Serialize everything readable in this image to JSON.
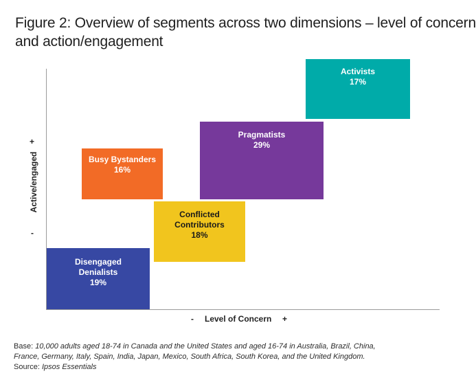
{
  "title": {
    "line1": "Figure 2: Overview of segments across two dimensions – level of concern",
    "line2": "and action/engagement"
  },
  "axes": {
    "y_label": "Active/engaged",
    "y_plus": "+",
    "y_minus": "-",
    "x_label": "Level of Concern",
    "x_minus": "-",
    "x_plus": "+"
  },
  "segments": [
    {
      "name_lines": [
        "Activists"
      ],
      "percent": "17%",
      "color": "#00aba9",
      "text_color": "#ffffff"
    },
    {
      "name_lines": [
        "Pragmatists"
      ],
      "percent": "29%",
      "color": "#76399b",
      "text_color": "#ffffff"
    },
    {
      "name_lines": [
        "Busy Bystanders"
      ],
      "percent": "16%",
      "color": "#f26b26",
      "text_color": "#ffffff"
    },
    {
      "name_lines": [
        "Conflicted",
        "Contributors"
      ],
      "percent": "18%",
      "color": "#f1c51e",
      "text_color": "#1a1a1a"
    },
    {
      "name_lines": [
        "Disengaged",
        "Denialists"
      ],
      "percent": "19%",
      "color": "#3748a3",
      "text_color": "#ffffff"
    }
  ],
  "footer": {
    "base_label": "Base:",
    "base_text_line1": "10,000 adults aged 18-74 in Canada and the United States and aged 16-74 in Australia, Brazil, China,",
    "base_text_line2": "France, Germany, Italy, Spain, India, Japan, Mexico, South Africa, South Korea, and the United Kingdom.",
    "source_label": "Source:",
    "source_text": "Ipsos Essentials"
  }
}
